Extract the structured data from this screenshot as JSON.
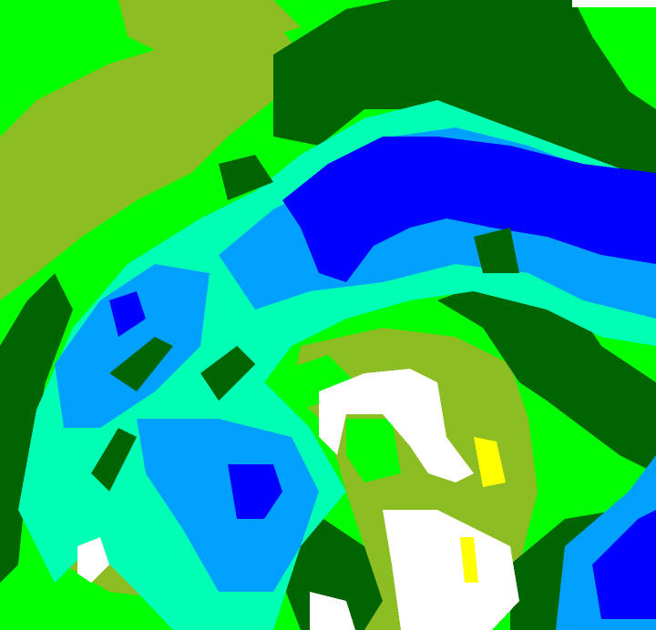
{
  "map": {
    "type": "classified-raster",
    "palette": {
      "bright_green": "#00ff00",
      "dark_green": "#006400",
      "olive": "#8cbe23",
      "cyan": "#00ffb4",
      "light_blue": "#00a0ff",
      "blue": "#0000ff",
      "white": "#ffffff",
      "yellow": "#ffff00"
    }
  }
}
